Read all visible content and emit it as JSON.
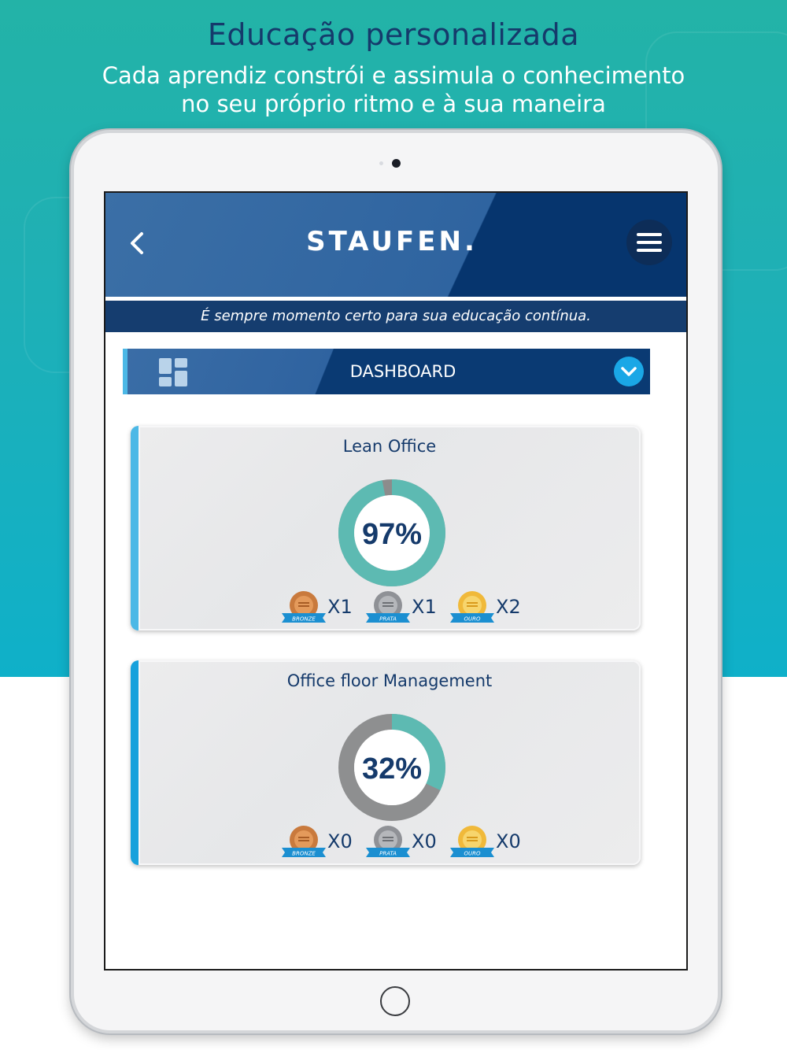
{
  "promo": {
    "headline": "Educação personalizada",
    "subline_1": "Cada aprendiz constrói e assimula o conhecimento",
    "subline_2": "no seu próprio ritmo e à sua maneira"
  },
  "header": {
    "logo": "STAUFEN.",
    "tagline": "É sempre momento certo para sua educação contínua."
  },
  "dashboard": {
    "label": "DASHBOARD"
  },
  "courses": [
    {
      "title": "Lean Office",
      "progress": 97,
      "progress_label": "97%",
      "medals": [
        {
          "type": "bronze",
          "ribbon": "BRONZE",
          "count": "X1"
        },
        {
          "type": "prata",
          "ribbon": "PRATA",
          "count": "X1"
        },
        {
          "type": "ouro",
          "ribbon": "OURO",
          "count": "X2"
        }
      ]
    },
    {
      "title": "Office floor Management",
      "progress": 32,
      "progress_label": "32%",
      "medals": [
        {
          "type": "bronze",
          "ribbon": "BRONZE",
          "count": "X0"
        },
        {
          "type": "prata",
          "ribbon": "PRATA",
          "count": "X0"
        },
        {
          "type": "ouro",
          "ribbon": "OURO",
          "count": "X0"
        }
      ]
    }
  ],
  "colors": {
    "progress_fill": "#5dbab2",
    "progress_track_card1": "#8c8c8c",
    "progress_track_card2": "#8e8f90",
    "navy": "#153a6b",
    "accent_blue": "#1aa7e6",
    "bronze": "#c97a3d",
    "prata": "#8f9196",
    "ouro": "#f0b93a",
    "ribbon": "#1b8fd1"
  },
  "icons": {
    "back": "chevron-left-icon",
    "menu": "hamburger-menu-icon",
    "dashboard": "dashboard-grid-icon",
    "dropdown": "chevron-down-icon"
  }
}
